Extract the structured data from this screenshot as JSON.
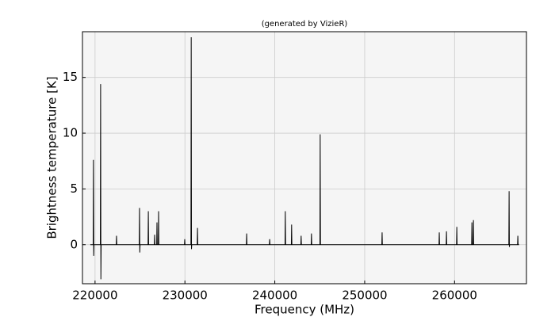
{
  "chart_data": {
    "type": "line",
    "title": "(generated by VizieR)",
    "x_label": "Frequency (MHz)",
    "y_label": "Brightness temperature [K]",
    "x": [
      219470,
      219790,
      219820,
      219850,
      219880,
      220590,
      220620,
      220650,
      220680,
      222360,
      222390,
      222420,
      224920,
      224950,
      224980,
      225010,
      225900,
      225930,
      225960,
      226600,
      226630,
      226660,
      226860,
      226890,
      226920,
      227040,
      227070,
      227100,
      229950,
      229980,
      230010,
      230670,
      230700,
      230730,
      230760,
      231370,
      231400,
      231430,
      236840,
      236870,
      236900,
      239400,
      239430,
      239460,
      241140,
      241170,
      241200,
      241840,
      241870,
      241900,
      242900,
      242930,
      242960,
      244050,
      244080,
      244110,
      245020,
      245050,
      245080,
      251910,
      251940,
      251970,
      258270,
      258300,
      258330,
      259070,
      259100,
      259130,
      260220,
      260250,
      260280,
      261900,
      261930,
      261960,
      262070,
      262100,
      262130,
      266040,
      266070,
      266100,
      266130,
      267010,
      267040,
      267070,
      267180
    ],
    "values": [
      0,
      0,
      7.6,
      -1.0,
      0,
      0,
      14.4,
      -3.1,
      0,
      0,
      0.8,
      0,
      0,
      3.3,
      -0.7,
      0,
      0,
      3.0,
      0,
      0,
      0.9,
      0,
      0,
      2.0,
      0,
      0,
      3.0,
      0,
      0,
      0.5,
      0,
      0,
      18.6,
      -0.4,
      0,
      0,
      1.5,
      0,
      0,
      1.0,
      0,
      0,
      0.5,
      0,
      0,
      3.0,
      0,
      0,
      1.8,
      0,
      0,
      0.8,
      0,
      0,
      1.0,
      0,
      0,
      9.9,
      0,
      0,
      1.1,
      0,
      0,
      1.1,
      0,
      0,
      1.2,
      0,
      0,
      1.6,
      0,
      0,
      2.0,
      0,
      0,
      2.2,
      0,
      0,
      4.8,
      -0.2,
      0,
      0,
      0.8,
      0,
      0
    ],
    "color": "#000000",
    "xlim": [
      218600,
      268000
    ],
    "ylim": [
      -3.5,
      19.1
    ],
    "xticks": [
      220000,
      230000,
      240000,
      250000,
      260000
    ],
    "yticks": [
      0,
      5,
      10,
      15
    ],
    "grid": true
  }
}
